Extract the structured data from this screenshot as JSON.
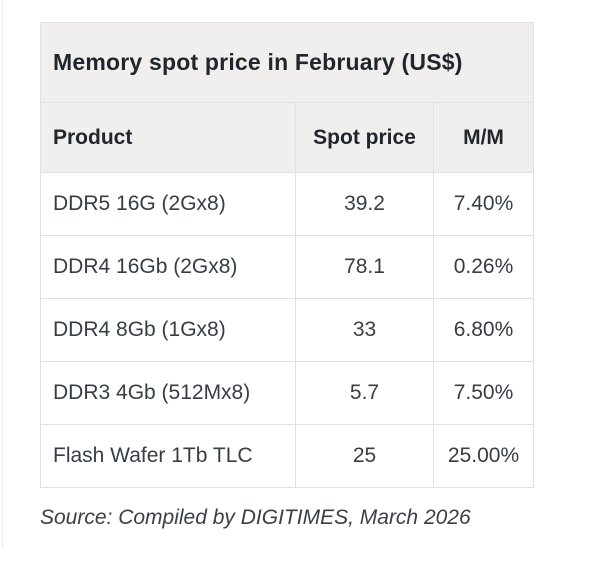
{
  "chart_data": {
    "type": "table",
    "title": "Memory spot price in February (US$)",
    "columns": [
      "Product",
      "Spot price",
      "M/M"
    ],
    "rows": [
      {
        "product": "DDR5 16G (2Gx8)",
        "spot_price": "39.2",
        "mm": "7.40%"
      },
      {
        "product": "DDR4 16Gb (2Gx8)",
        "spot_price": "78.1",
        "mm": "0.26%"
      },
      {
        "product": "DDR4 8Gb (1Gx8)",
        "spot_price": "33",
        "mm": "6.80%"
      },
      {
        "product": "DDR3 4Gb (512Mx8)",
        "spot_price": "5.7",
        "mm": "7.50%"
      },
      {
        "product": "Flash Wafer 1Tb TLC",
        "spot_price": "25",
        "mm": "25.00%"
      }
    ],
    "numeric": {
      "spot_price_values": [
        39.2,
        78.1,
        33,
        5.7,
        25
      ],
      "mm_percent_values": [
        7.4,
        0.26,
        6.8,
        7.5,
        25.0
      ]
    },
    "layout_hints": {
      "header_background": "#f0efed",
      "border_color": "#e2e1df",
      "title_text_color": "#21262e",
      "body_text_color": "#363d45",
      "grid": "on"
    }
  },
  "source_note": "Source: Compiled by DIGITIMES, March 2026"
}
